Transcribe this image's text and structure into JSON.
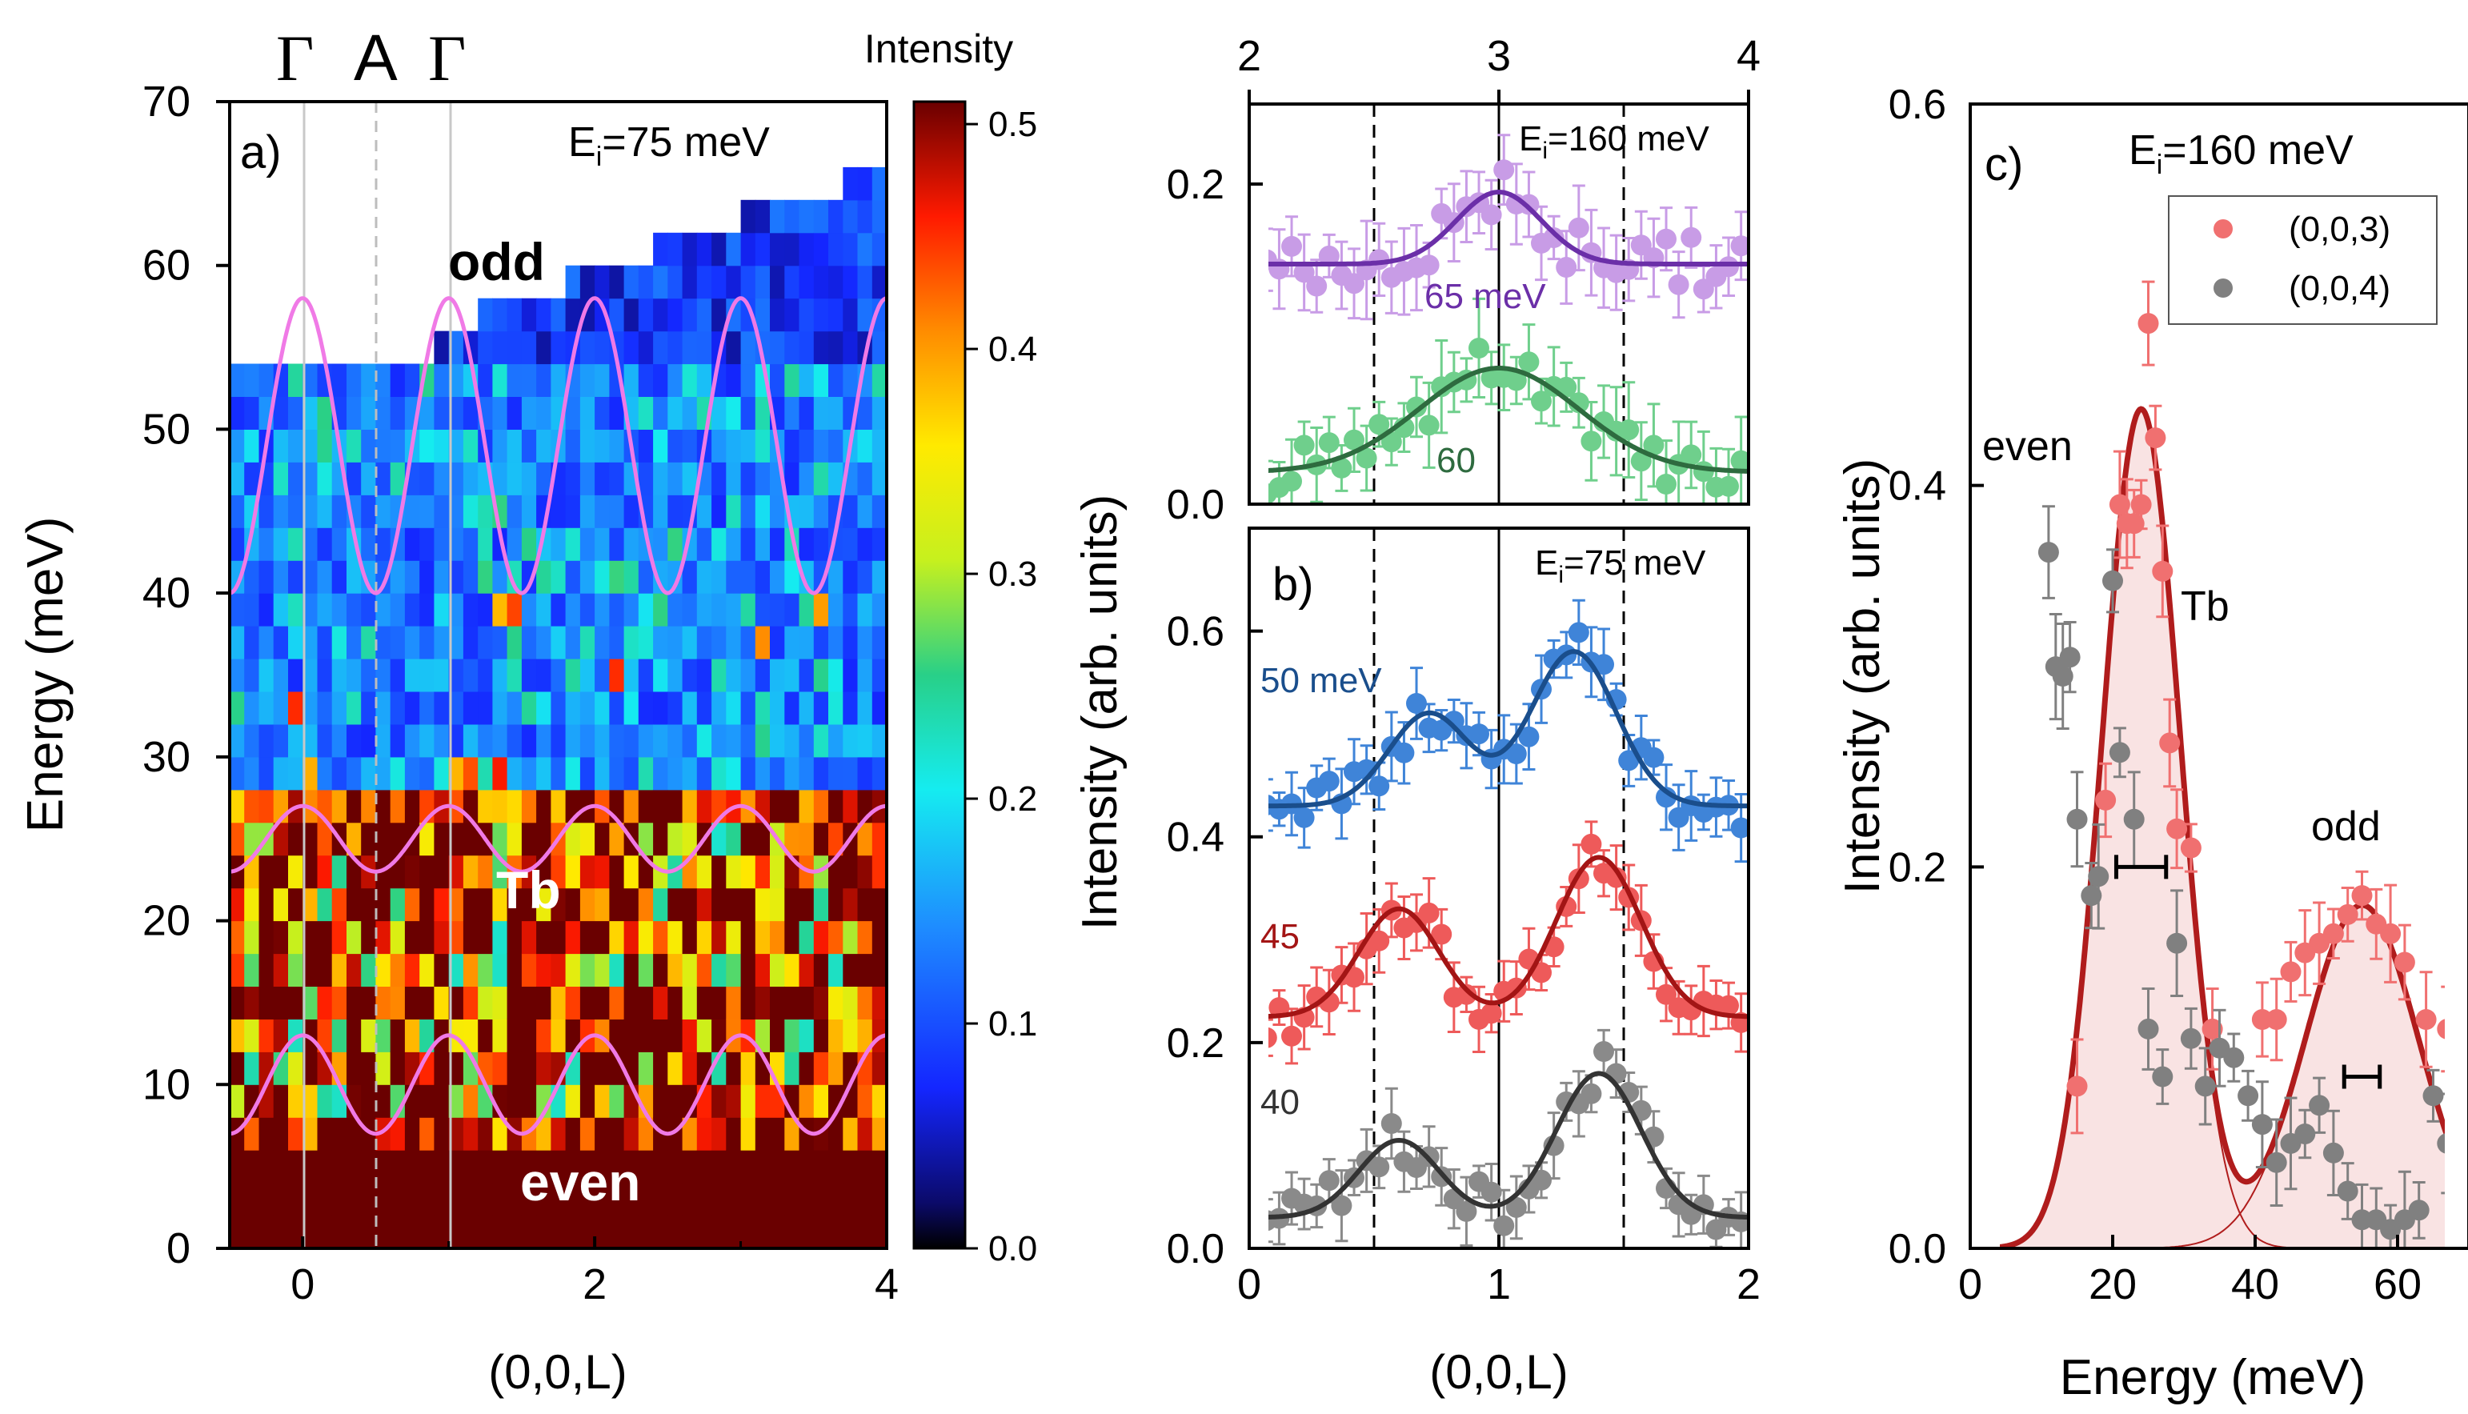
{
  "chart_data": [
    {
      "panel": "a)",
      "type": "heatmap",
      "title": "",
      "annotation_energy": "E",
      "annotation_energy_sub": "i",
      "annotation_energy_value": "=75 meV",
      "xlabel": "(0,0,L)",
      "ylabel": "Energy (meV)",
      "xlim": [
        -0.5,
        4
      ],
      "ylim": [
        0,
        70
      ],
      "xticks": [
        "0",
        "2",
        "4"
      ],
      "yticks": [
        "0",
        "10",
        "20",
        "30",
        "40",
        "50",
        "60",
        "70"
      ],
      "top_labels": [
        "Γ",
        "A",
        "Γ"
      ],
      "mode_labels": {
        "odd": "odd",
        "tb": "Tb",
        "even": "even"
      },
      "dispersion_curves": [
        {
          "name": "odd",
          "center": 49,
          "amplitude": 9,
          "period_L": 1
        },
        {
          "name": "Tb",
          "center": 25,
          "amplitude": 2,
          "period_L": 1
        },
        {
          "name": "even",
          "center": 10,
          "amplitude": 3,
          "period_L": 1
        }
      ],
      "colorbar": {
        "label": "Intensity",
        "ticks": [
          "0.0",
          "0.1",
          "0.2",
          "0.3",
          "0.4",
          "0.5"
        ],
        "range": [
          0,
          0.51
        ]
      },
      "data_regions": [
        {
          "energy_range": [
            0,
            6
          ],
          "intensity": "saturated (>0.5)"
        },
        {
          "energy_range": [
            6,
            28
          ],
          "intensity": "0.3–0.5 mixed"
        },
        {
          "energy_range": [
            28,
            54
          ],
          "intensity": "0.0–0.2"
        },
        {
          "energy_range": [
            54,
            66
          ],
          "intensity": "0.0–0.1, measured only at higher L"
        }
      ]
    },
    {
      "panel": "b) top",
      "type": "scatter",
      "annotation_energy": "E",
      "annotation_energy_sub": "i",
      "annotation_energy_value": "=160 meV",
      "top_axis_ticks": [
        "2",
        "3",
        "4"
      ],
      "xlim": [
        0,
        2
      ],
      "ylim": [
        0,
        0.25
      ],
      "yticks": [
        "0.0",
        "0.2"
      ],
      "series": [
        {
          "name": "65 meV",
          "label": "65 meV",
          "color": "#6b2fa8",
          "point_color": "#c89ce6",
          "baseline": 0.15,
          "peaks": [
            {
              "center": 1.0,
              "amplitude": 0.045,
              "width": 0.17
            }
          ]
        },
        {
          "name": "60",
          "label": "60",
          "color": "#2e6b3f",
          "point_color": "#6fcf8c",
          "baseline": 0.02,
          "peaks": [
            {
              "center": 1.0,
              "amplitude": 0.065,
              "width": 0.32
            }
          ]
        }
      ]
    },
    {
      "panel": "b)",
      "type": "scatter",
      "label": "b)",
      "annotation_energy": "E",
      "annotation_energy_sub": "i",
      "annotation_energy_value": "=75 meV",
      "xlabel": "(0,0,L)",
      "ylabel": "Intensity (arb. units)",
      "xlim": [
        0,
        2
      ],
      "ylim": [
        0,
        0.7
      ],
      "xticks": [
        "0",
        "1",
        "2"
      ],
      "yticks": [
        "0.0",
        "0.2",
        "0.4",
        "0.6"
      ],
      "series": [
        {
          "name": "50 meV",
          "label": "50 meV",
          "color": "#1a4e8c",
          "point_color": "#3f84d8",
          "baseline": 0.43,
          "peaks": [
            {
              "center": 0.72,
              "amplitude": 0.09,
              "width": 0.16
            },
            {
              "center": 1.3,
              "amplitude": 0.15,
              "width": 0.17
            }
          ]
        },
        {
          "name": "45",
          "label": "45",
          "color": "#a31515",
          "point_color": "#ee5a5a",
          "baseline": 0.225,
          "peaks": [
            {
              "center": 0.6,
              "amplitude": 0.105,
              "width": 0.16
            },
            {
              "center": 1.4,
              "amplitude": 0.155,
              "width": 0.17
            }
          ]
        },
        {
          "name": "40",
          "label": "40",
          "color": "#333333",
          "point_color": "#8a8a8a",
          "baseline": 0.03,
          "peaks": [
            {
              "center": 0.6,
              "amplitude": 0.075,
              "width": 0.16
            },
            {
              "center": 1.4,
              "amplitude": 0.14,
              "width": 0.17
            }
          ]
        }
      ]
    },
    {
      "panel": "c)",
      "type": "scatter",
      "label": "c)",
      "annotation_energy": "E",
      "annotation_energy_sub": "i",
      "annotation_energy_value": "=160 meV",
      "xlabel": "Energy (meV)",
      "ylabel": "Intensity (arb. units)",
      "xlim": [
        0,
        70
      ],
      "ylim": [
        0,
        0.6
      ],
      "xticks": [
        "0",
        "20",
        "40",
        "60"
      ],
      "yticks": [
        "0.0",
        "0.2",
        "0.4",
        "0.6"
      ],
      "legend": {
        "position": "top-right",
        "entries": [
          "(0,0,3)",
          "(0,0,4)"
        ]
      },
      "annotations": [
        "even",
        "Tb",
        "odd"
      ],
      "fit": {
        "color": "#b01c1c",
        "components": [
          {
            "center": 24,
            "amplitude": 0.44,
            "sigma": 5.5
          },
          {
            "center": 55,
            "amplitude": 0.18,
            "sigma": 8
          }
        ]
      },
      "series": [
        {
          "name": "(0,0,3)",
          "color": "#f07070",
          "x": [
            15,
            19,
            21,
            22,
            23,
            24,
            25,
            26,
            27,
            28,
            29,
            31,
            34,
            41,
            43,
            45,
            47,
            49,
            51,
            53,
            55,
            57,
            59,
            61,
            64,
            67,
            69
          ],
          "y": [
            0.085,
            0.235,
            0.39,
            0.38,
            0.38,
            0.39,
            0.485,
            0.425,
            0.355,
            0.265,
            0.22,
            0.21,
            0.115,
            0.12,
            0.12,
            0.145,
            0.155,
            0.16,
            0.165,
            0.175,
            0.185,
            0.17,
            0.165,
            0.15,
            0.12,
            0.115,
            0.1
          ]
        },
        {
          "name": "(0,0,4)",
          "color": "#808080",
          "x": [
            11,
            12,
            13,
            14,
            15,
            17,
            18,
            20,
            21,
            23,
            25,
            27,
            29,
            31,
            33,
            35,
            37,
            39,
            41,
            43,
            45,
            47,
            49,
            51,
            53,
            55,
            57,
            59,
            61,
            63,
            65,
            67,
            69
          ],
          "y": [
            0.365,
            0.305,
            0.3,
            0.31,
            0.225,
            0.185,
            0.195,
            0.35,
            0.26,
            0.225,
            0.115,
            0.09,
            0.16,
            0.11,
            0.085,
            0.105,
            0.1,
            0.08,
            0.065,
            0.045,
            0.055,
            0.06,
            0.075,
            0.05,
            0.03,
            0.015,
            0.015,
            0.01,
            0.015,
            0.02,
            0.08,
            0.055,
            0.045
          ]
        }
      ],
      "resolution_bars": [
        {
          "x": 24,
          "y": 0.2,
          "half_width": 3.5
        },
        {
          "x": 55,
          "y": 0.09,
          "half_width": 2.5
        }
      ]
    }
  ]
}
